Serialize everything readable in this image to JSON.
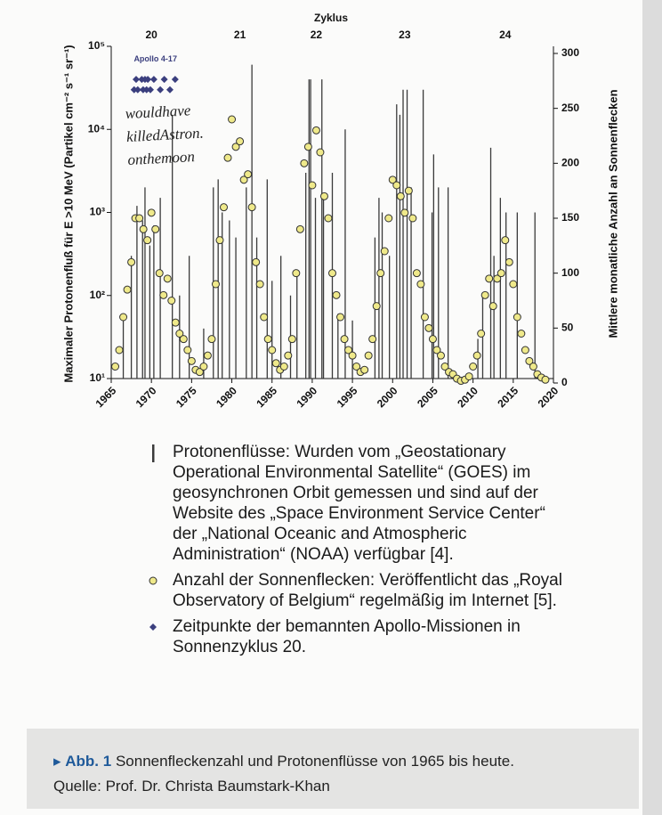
{
  "chart_data": {
    "type": "scatter",
    "top_axis": {
      "title": "Zyklus",
      "ticks": [
        {
          "value": 1970,
          "label": "20"
        },
        {
          "value": 1981,
          "label": "21"
        },
        {
          "value": 1990.5,
          "label": "22"
        },
        {
          "value": 2001.5,
          "label": "23"
        },
        {
          "value": 2014,
          "label": "24"
        }
      ]
    },
    "y_label": "Maximaler Protonenfluß für E >10 MeV (Partikel cm⁻² s⁻¹ sr⁻¹)",
    "y2_label": "Mittlere monatliche Anzahl an Sonnenflecken",
    "xlim": [
      1965,
      2020
    ],
    "xticks": [
      1965,
      1970,
      1975,
      1980,
      1985,
      1990,
      1995,
      2000,
      2005,
      2010,
      2015,
      2020
    ],
    "ylim": [
      10,
      100000
    ],
    "log_y": true,
    "yticks": [
      {
        "value": 10,
        "label": "10¹"
      },
      {
        "value": 100,
        "label": "10²"
      },
      {
        "value": 1000,
        "label": "10³"
      },
      {
        "value": 10000,
        "label": "10⁴"
      },
      {
        "value": 100000,
        "label": "10⁵"
      }
    ],
    "y2lim": [
      0,
      300
    ],
    "y2ticks": [
      0,
      50,
      100,
      150,
      200,
      250,
      300
    ],
    "series": [
      {
        "name": "Protonenflüsse: Wurden vom „Geostationary Operational Environmental Satellite“ (GOES) im geosynchronen Orbit gemessen und sind auf der Website des „Space Environment Service Center“ der „National Oceanic and Atmospheric Administration“ (NOAA) verfügbar [4].",
        "color": "#3a3a3a",
        "marker": "line",
        "x": [
          1966.5,
          1967.5,
          1968.2,
          1968.9,
          1969.2,
          1969.8,
          1970.3,
          1971.1,
          1972.6,
          1973.5,
          1974.7,
          1976.5,
          1977.7,
          1978.3,
          1978.8,
          1979.7,
          1980.5,
          1981.8,
          1982.5,
          1983.1,
          1984.4,
          1985.0,
          1986.1,
          1987.3,
          1988.1,
          1989.2,
          1989.6,
          1989.8,
          1990.4,
          1991.2,
          1991.4,
          1992.5,
          1993.2,
          1994.1,
          1995.0,
          1997.8,
          1998.3,
          1998.7,
          1999.6,
          2000.5,
          2000.9,
          2001.3,
          2001.8,
          2002.3,
          2003.8,
          2004.9,
          2005.1,
          2005.7,
          2006.9,
          2010.6,
          2011.2,
          2012.2,
          2012.6,
          2013.4,
          2014.1,
          2015.5,
          2017.7
        ],
        "values": [
          60,
          300,
          1200,
          800,
          2000,
          400,
          700,
          1500,
          15000,
          100,
          300,
          40,
          2000,
          2500,
          1000,
          800,
          500,
          2000,
          60000,
          500,
          2500,
          150,
          300,
          100,
          200,
          3000,
          40000,
          40000,
          1500,
          40000,
          1500,
          3000,
          60,
          10000,
          50,
          500,
          1500,
          1000,
          300,
          20000,
          15000,
          30000,
          30000,
          2000,
          30000,
          1000,
          5000,
          2000,
          2000,
          30,
          100,
          6000,
          300,
          1500,
          1000,
          1000,
          1000
        ]
      },
      {
        "name": "Anzahl der Sonnenflecken: Veröffentlicht das „Royal Observatory of Belgium“ regelmäßig im Internet [5].",
        "color": "#efe98a",
        "marker": "circle",
        "axis": "y2",
        "x": [
          1965.5,
          1966,
          1966.5,
          1967,
          1967.5,
          1968,
          1968.5,
          1969,
          1969.5,
          1970,
          1970.5,
          1971,
          1971.5,
          1972,
          1972.5,
          1973,
          1973.5,
          1974,
          1974.5,
          1975,
          1975.5,
          1976,
          1976.5,
          1977,
          1977.5,
          1978,
          1978.5,
          1979,
          1979.5,
          1980,
          1980.5,
          1981,
          1981.5,
          1982,
          1982.5,
          1983,
          1983.5,
          1984,
          1984.5,
          1985,
          1985.5,
          1986,
          1986.5,
          1987,
          1987.5,
          1988,
          1988.5,
          1989,
          1989.5,
          1990,
          1990.5,
          1991,
          1991.5,
          1992,
          1992.5,
          1993,
          1993.5,
          1994,
          1994.5,
          1995,
          1995.5,
          1996,
          1996.5,
          1997,
          1997.5,
          1998,
          1998.5,
          1999,
          1999.5,
          2000,
          2000.5,
          2001,
          2001.5,
          2002,
          2002.5,
          2003,
          2003.5,
          2004,
          2004.5,
          2005,
          2005.5,
          2006,
          2006.5,
          2007,
          2007.5,
          2008,
          2008.5,
          2009,
          2009.5,
          2010,
          2010.5,
          2011,
          2011.5,
          2012,
          2012.5,
          2013,
          2013.5,
          2014,
          2014.5,
          2015,
          2015.5,
          2016,
          2016.5,
          2017,
          2017.5,
          2018,
          2018.5,
          2019
        ],
        "values": [
          15,
          30,
          60,
          85,
          110,
          150,
          150,
          140,
          130,
          155,
          140,
          100,
          80,
          95,
          75,
          55,
          45,
          40,
          30,
          20,
          12,
          10,
          15,
          25,
          40,
          90,
          130,
          160,
          205,
          240,
          215,
          220,
          185,
          190,
          160,
          110,
          90,
          60,
          40,
          30,
          18,
          12,
          15,
          25,
          40,
          100,
          140,
          200,
          215,
          180,
          230,
          210,
          170,
          150,
          100,
          80,
          60,
          40,
          30,
          25,
          15,
          10,
          12,
          25,
          40,
          70,
          100,
          120,
          150,
          185,
          180,
          170,
          155,
          175,
          150,
          100,
          90,
          60,
          50,
          40,
          30,
          25,
          15,
          10,
          8,
          4,
          2,
          3,
          6,
          15,
          25,
          45,
          80,
          95,
          70,
          95,
          100,
          130,
          110,
          90,
          60,
          45,
          30,
          20,
          15,
          8,
          5,
          3
        ]
      },
      {
        "name": "Zeitpunkte der bemannten Apollo-Missionen in Sonnenzyklus 20.",
        "color": "#3b3f7e",
        "marker": "diamond",
        "x": [
          1967.85,
          1968.1,
          1968.3,
          1968.8,
          1968.97,
          1969.2,
          1969.4,
          1969.55,
          1969.87,
          1970.3,
          1971.1,
          1971.6,
          1972.3,
          1972.95
        ],
        "values": [
          30000,
          40000,
          30000,
          40000,
          30000,
          40000,
          30000,
          40000,
          30000,
          40000,
          30000,
          40000,
          30000,
          40000
        ]
      }
    ],
    "annotations": [
      {
        "text": "Apollo 4-17",
        "x": 1970.5,
        "y": 70000
      }
    ],
    "handwritten_note": "wouldhave killedAstron. onthemoon"
  },
  "caption": {
    "label": "Abb. 1",
    "text": "Sonnenfleckenzahl und Protonenflüsse von 1965 bis heute.",
    "source": "Quelle: Prof. Dr. Christa Baumstark-Khan"
  }
}
